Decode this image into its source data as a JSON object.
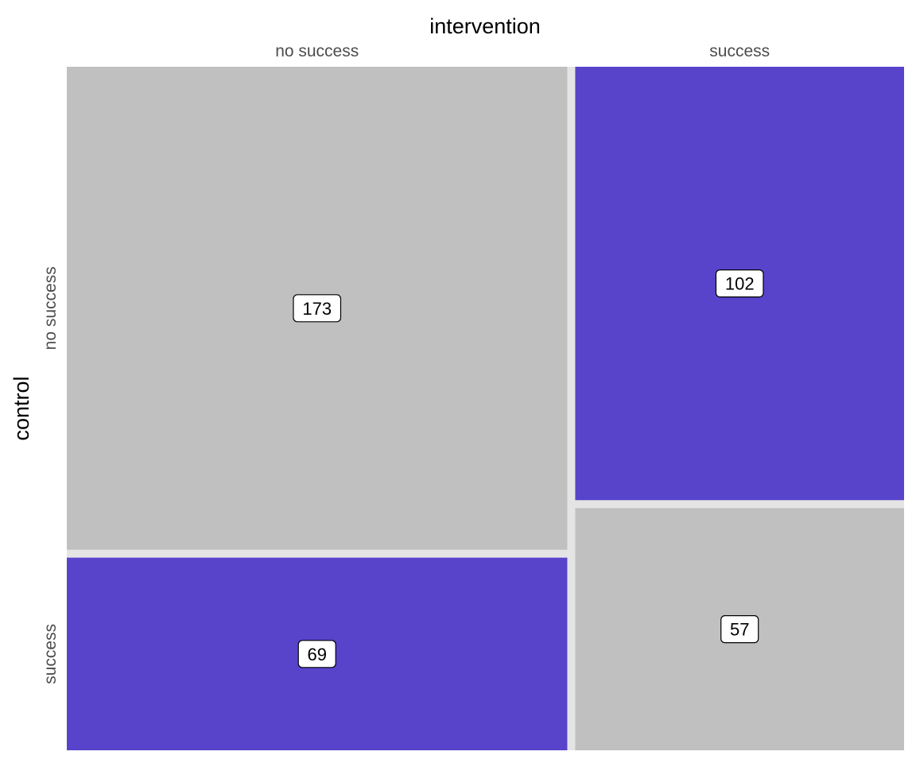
{
  "chart_data": {
    "type": "mosaic",
    "title": "",
    "xlabel": "intervention",
    "ylabel": "control",
    "x_categories": [
      "no success",
      "success"
    ],
    "y_categories": [
      "no success",
      "success"
    ],
    "cells": [
      {
        "x": "no success",
        "y": "no success",
        "count": 173,
        "color": "#c0c0c0"
      },
      {
        "x": "no success",
        "y": "success",
        "count": 69,
        "color": "#5744cb"
      },
      {
        "x": "success",
        "y": "no success",
        "count": 102,
        "color": "#5744cb"
      },
      {
        "x": "success",
        "y": "success",
        "count": 57,
        "color": "#c0c0c0"
      }
    ],
    "colors": {
      "concordant": "#c0c0c0",
      "discordant": "#5744cb",
      "background": "#e4e4e4"
    }
  }
}
